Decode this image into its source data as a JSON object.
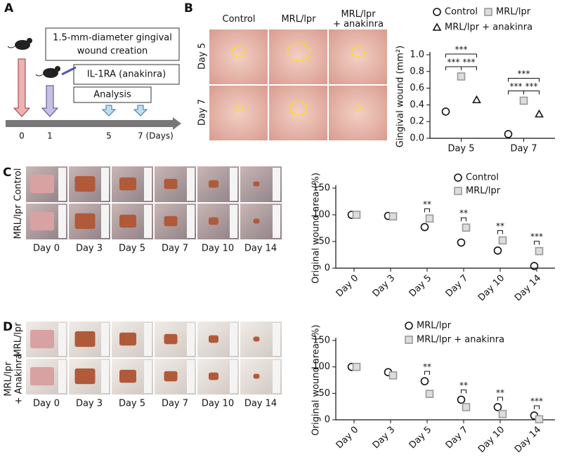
{
  "panel_labels": [
    "A",
    "B",
    "C",
    "D"
  ],
  "diagram": {
    "wound_box": [
      "1.5-mm-diameter gingival",
      "wound creation"
    ],
    "drug_box": "IL-1RA (anakinra)",
    "analysis_box": "Analysis",
    "timeline_labels": [
      "0",
      "1",
      "5",
      "7 (Days)"
    ]
  },
  "photos_b": {
    "columns": [
      "Control",
      "MRL/lpr",
      "MRL/lpr\n+ anakinra"
    ],
    "rows": [
      "Day 5",
      "Day 7"
    ]
  },
  "photos_c": {
    "rows": [
      "Control",
      "MRL/lpr"
    ],
    "columns": [
      "Day 0",
      "Day 3",
      "Day 5",
      "Day 7",
      "Day 10",
      "Day 14"
    ]
  },
  "photos_d": {
    "rows": [
      "MRL/lpr",
      "MRL/lpr",
      "+ Anakinra"
    ],
    "columns": [
      "Day 0",
      "Day 3",
      "Day 5",
      "Day 7",
      "Day 10",
      "Day 14"
    ]
  },
  "chart_data": [
    {
      "type": "dot",
      "ylabel": "Gingival wound (mm²)",
      "categories": [
        "Day 5",
        "Day 7"
      ],
      "series": [
        {
          "name": "Control",
          "color": "#111111",
          "marker": "circle",
          "values": [
            0.32,
            0.05
          ]
        },
        {
          "name": "MRL/lpr",
          "color": "#999999",
          "marker": "square",
          "values": [
            0.74,
            0.45
          ]
        },
        {
          "name": "MRL/lpr + anakinra",
          "color": "#111111",
          "marker": "triangle",
          "values": [
            0.46,
            0.29
          ]
        }
      ],
      "ylim": [
        0,
        1
      ],
      "yticks": [
        {
          "value": 0,
          "label": "0.0"
        },
        0.2,
        0.4,
        0.6,
        0.8,
        {
          "value": 1,
          "label": "1.0"
        }
      ],
      "significance": [
        [
          "***",
          "***",
          "***"
        ],
        [
          "***",
          "***",
          "***"
        ]
      ]
    },
    {
      "type": "dot",
      "ylabel": "Original wound area (%)",
      "categories": [
        "Day 0",
        "Day 3",
        "Day 5",
        "Day 7",
        "Day 10",
        "Day 14"
      ],
      "series": [
        {
          "name": "Control",
          "color": "#111111",
          "marker": "circle",
          "values": [
            100,
            98,
            77,
            48,
            33,
            4
          ]
        },
        {
          "name": "MRL/lpr",
          "color": "#999999",
          "marker": "square",
          "values": [
            100,
            97,
            93,
            76,
            52,
            32
          ]
        }
      ],
      "ylim": [
        0,
        150
      ],
      "yticks": [
        0,
        50,
        100,
        150
      ],
      "significance": [
        null,
        null,
        "**",
        "**",
        "**",
        "***"
      ]
    },
    {
      "type": "dot",
      "ylabel": "Original wound area (%)",
      "categories": [
        "Day 0",
        "Day 3",
        "Day 5",
        "Day 7",
        "Day 10",
        "Day 14"
      ],
      "series": [
        {
          "name": "MRL/lpr",
          "color": "#111111",
          "marker": "circle",
          "values": [
            100,
            90,
            73,
            38,
            24,
            8
          ]
        },
        {
          "name": "MRL/lpr + anakinra",
          "color": "#999999",
          "marker": "square",
          "values": [
            100,
            84,
            49,
            24,
            11,
            1
          ]
        }
      ],
      "ylim": [
        0,
        150
      ],
      "yticks": [
        0,
        50,
        100,
        150
      ],
      "significance": [
        null,
        null,
        "**",
        "**",
        "**",
        "***"
      ]
    }
  ]
}
